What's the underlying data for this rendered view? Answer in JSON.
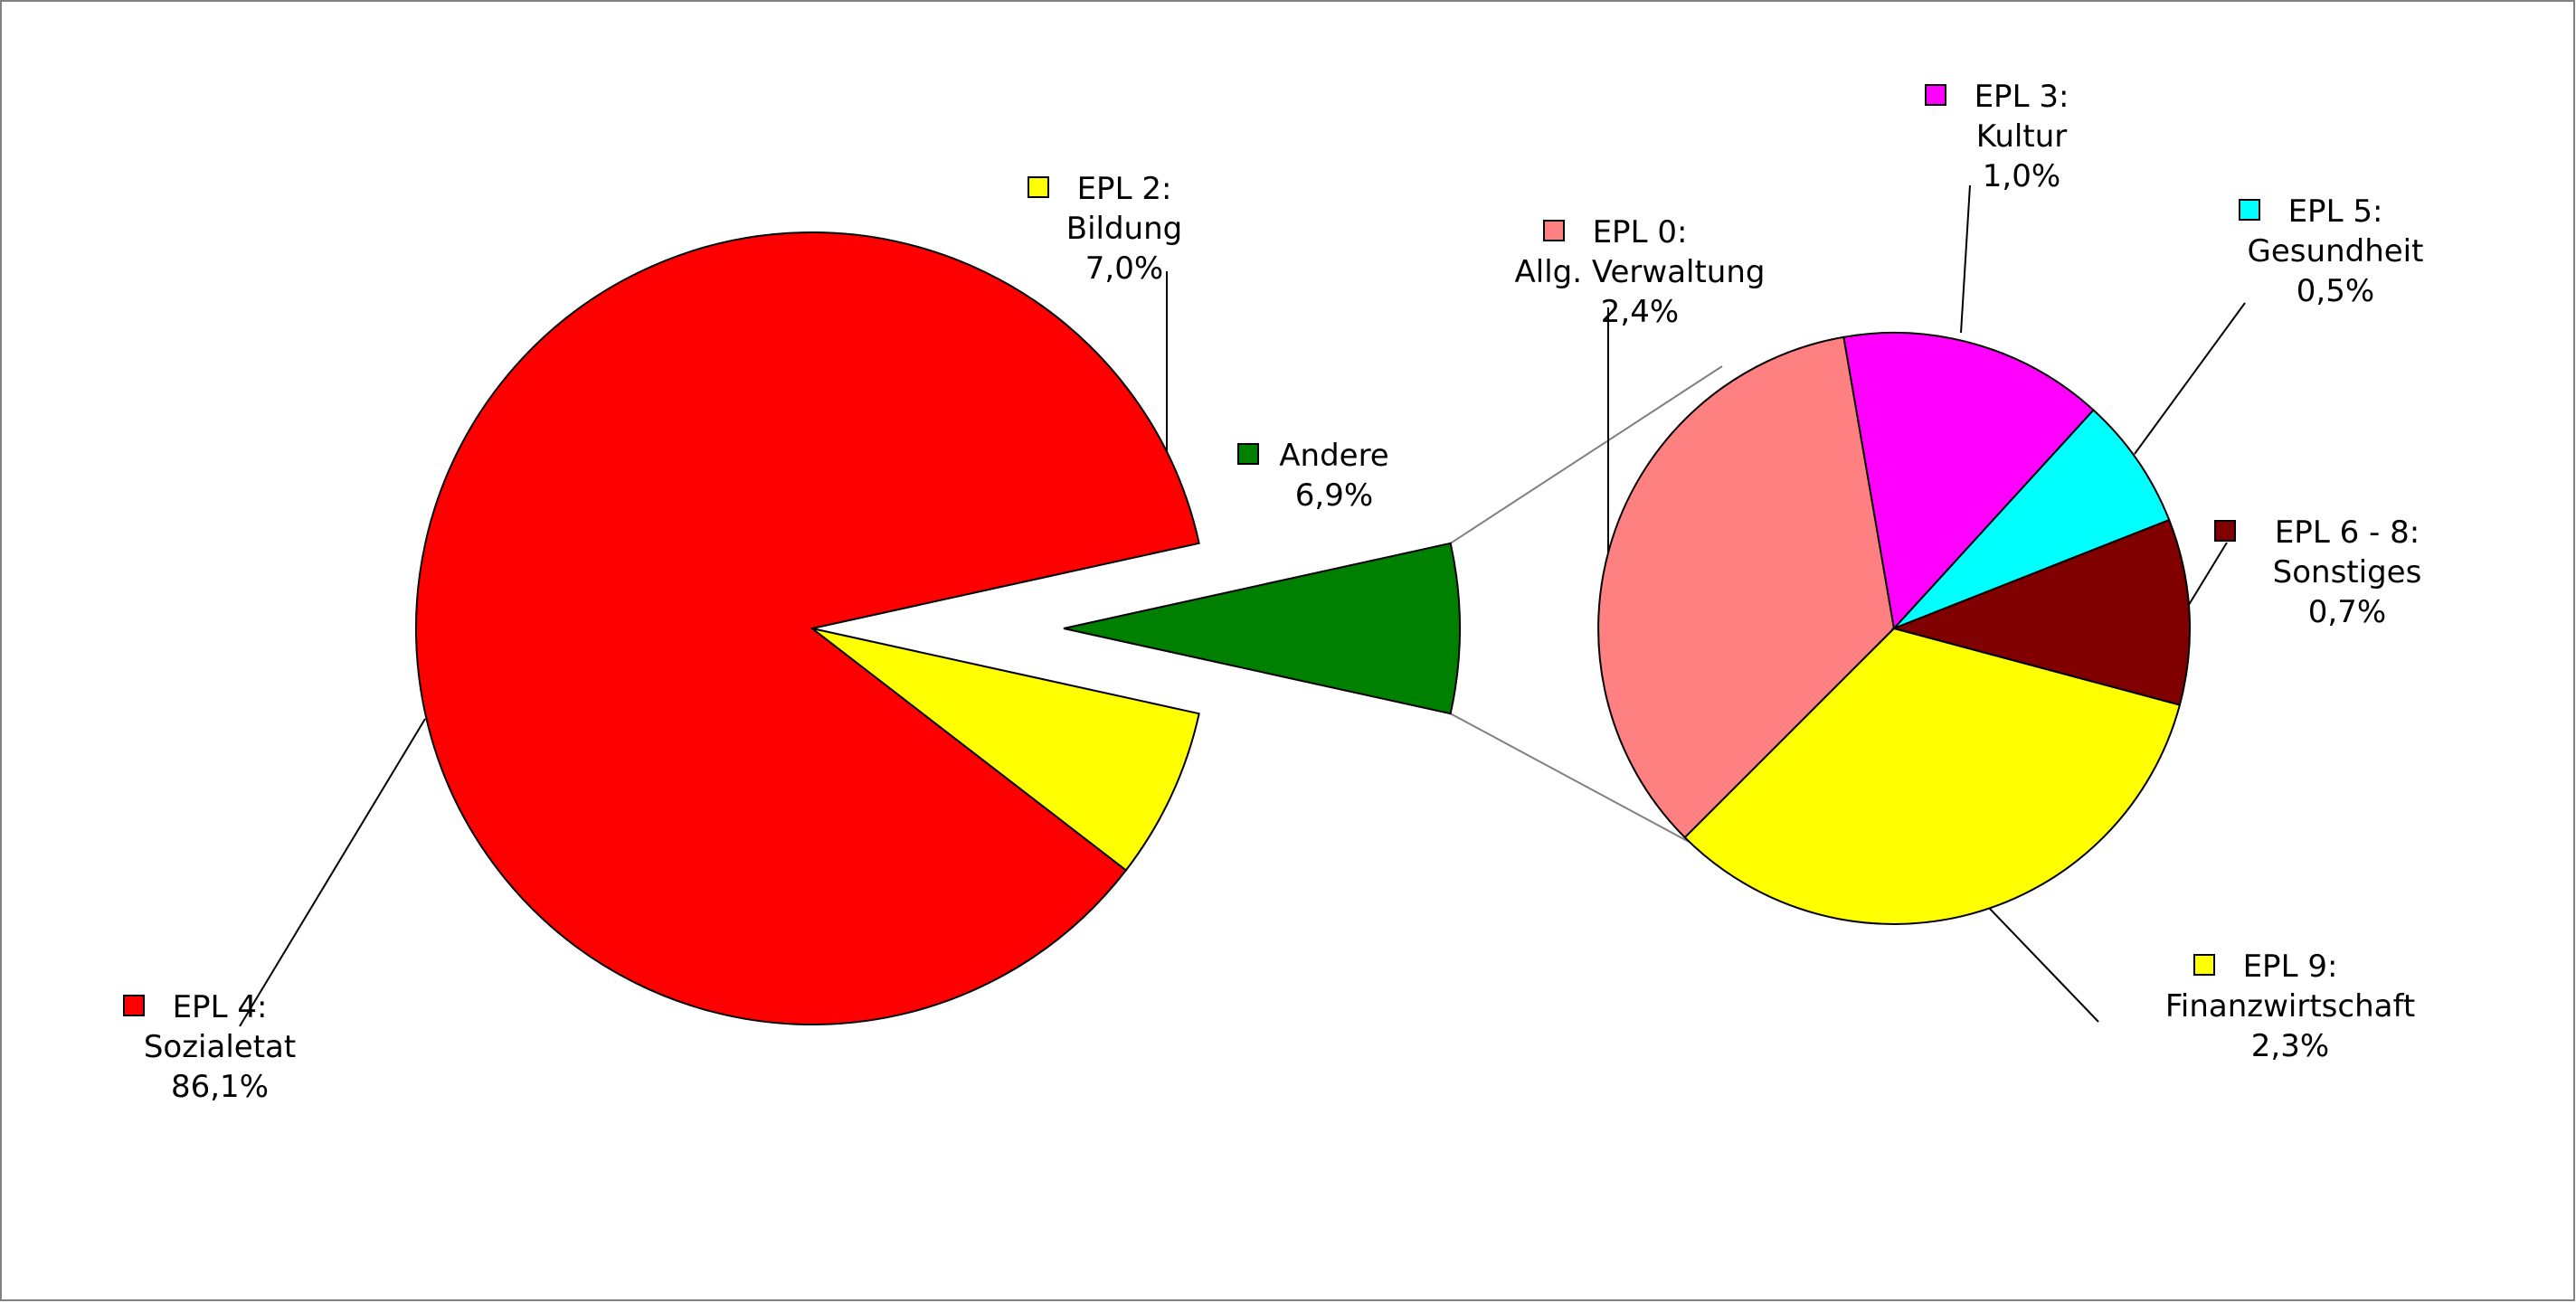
{
  "chart_data": {
    "type": "pie",
    "subtype": "pie-of-pie",
    "title": "",
    "legend": "none",
    "primary": {
      "slices": [
        {
          "label_line1": "EPL 4:",
          "label_line2": "Sozialetat",
          "value": 86.1,
          "value_text": "86,1%",
          "color": "#ff0000"
        },
        {
          "label_line1": "EPL 2:",
          "label_line2": "Bildung",
          "value": 7.0,
          "value_text": "7,0%",
          "color": "#ffff00"
        },
        {
          "label_line1": "Andere",
          "label_line2": "",
          "value": 6.9,
          "value_text": "6,9%",
          "color": "#008000"
        }
      ]
    },
    "secondary": {
      "breakdown_of": "Andere",
      "slices": [
        {
          "label_line1": "EPL 0:",
          "label_line2": "Allg. Verwaltung",
          "value": 2.4,
          "value_text": "2,4%",
          "color": "#ff8080"
        },
        {
          "label_line1": "EPL 3:",
          "label_line2": "Kultur",
          "value": 1.0,
          "value_text": "1,0%",
          "color": "#ff00ff"
        },
        {
          "label_line1": "EPL 5:",
          "label_line2": "Gesundheit",
          "value": 0.5,
          "value_text": "0,5%",
          "color": "#00ffff"
        },
        {
          "label_line1": "EPL 6 - 8:",
          "label_line2": "Sonstiges",
          "value": 0.7,
          "value_text": "0,7%",
          "color": "#800000"
        },
        {
          "label_line1": "EPL 9:",
          "label_line2": "Finanzwirtschaft",
          "value": 2.3,
          "value_text": "2,3%",
          "color": "#ffff00"
        }
      ]
    }
  }
}
